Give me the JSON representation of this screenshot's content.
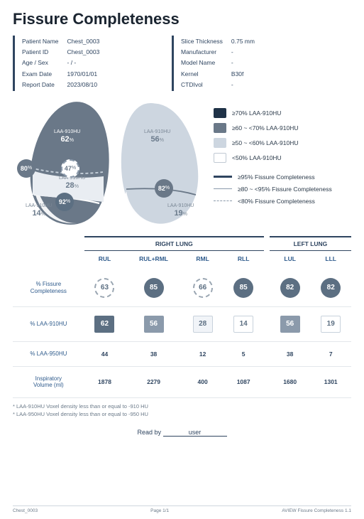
{
  "title": "Fissure Completeness",
  "patient_block": {
    "rows": [
      [
        "Patient Name",
        "Chest_0003"
      ],
      [
        "Patient ID",
        "Chest_0003"
      ],
      [
        "Age / Sex",
        "- / -"
      ],
      [
        "Exam Date",
        "1970/01/01"
      ],
      [
        "Report Date",
        "2023/08/10"
      ]
    ]
  },
  "scan_block": {
    "rows": [
      [
        "Slice Thickness",
        "0.75 mm"
      ],
      [
        "Manufacturer",
        "-"
      ],
      [
        "Model Name",
        "-"
      ],
      [
        "Kernel",
        "B30f"
      ],
      [
        "CTDIvol",
        "-"
      ]
    ]
  },
  "lung_diagram": {
    "right_lung_fill": "#6a7888",
    "right_lung_stroke": "#6a7888",
    "left_lung_fill": "#cdd6e0",
    "left_lung_stroke": "#cdd6e0",
    "lobe_line_color": "#9aa6b2",
    "labels": {
      "r_main": {
        "line1": "LAA-910HU",
        "pct": "62",
        "suffix": "%"
      },
      "r_mid": {
        "line1": "LAA-910HU",
        "pct": "28",
        "suffix": "%"
      },
      "r_low": {
        "line1": "LAA-910HU",
        "pct": "14",
        "suffix": "%"
      },
      "l_up": {
        "line1": "LAA-910HU",
        "pct": "56",
        "suffix": "%"
      },
      "l_low": {
        "line1": "LAA-910HU",
        "pct": "19",
        "suffix": "%"
      }
    },
    "badges": {
      "b1": {
        "val": "80",
        "suffix": "%",
        "style": "solid"
      },
      "b2": {
        "val": "47",
        "suffix": "%",
        "style": "dashed"
      },
      "b3": {
        "val": "92",
        "suffix": "%",
        "style": "solid"
      },
      "b4": {
        "val": "82",
        "suffix": "%",
        "style": "solid"
      }
    }
  },
  "legend": {
    "colors": [
      {
        "hex": "#1f3247",
        "text": "≥70% LAA-910HU"
      },
      {
        "hex": "#6a7888",
        "text": "≥60 ~ <70% LAA-910HU"
      },
      {
        "hex": "#cdd6e0",
        "text": "≥50 ~ <60% LAA-910HU"
      },
      {
        "hex": "#ffffff",
        "text": "<50% LAA-910HU",
        "border": "#c0c9d3"
      }
    ],
    "lines": [
      {
        "style": "solid",
        "width": 3,
        "color": "#2f4560",
        "text": "≥95% Fissure Completeness"
      },
      {
        "style": "solid",
        "width": 1.5,
        "color": "#8b9aab",
        "text": "≥80 ~ <95% Fissure Completeness"
      },
      {
        "style": "dashed",
        "width": 1.5,
        "color": "#8b9aab",
        "text": "<80% Fissure Completeness"
      }
    ]
  },
  "table": {
    "group_left": "RIGHT LUNG",
    "group_right": "LEFT LUNG",
    "cols_right": [
      "RUL",
      "RUL+RML",
      "RML",
      "RLL"
    ],
    "cols_left": [
      "LUL",
      "LLL"
    ],
    "rows": [
      {
        "label": "% Fissure\nCompleteness",
        "type": "pill",
        "r": [
          {
            "v": "63",
            "style": "dashed"
          },
          {
            "v": "85",
            "style": "solid"
          },
          {
            "v": "66",
            "style": "dashed"
          },
          {
            "v": "85",
            "style": "solid"
          }
        ],
        "l": [
          {
            "v": "82",
            "style": "solid"
          },
          {
            "v": "82",
            "style": "solid"
          }
        ]
      },
      {
        "label": "% LAA-910HU",
        "type": "sq",
        "r": [
          {
            "v": "62",
            "cls": "sq1"
          },
          {
            "v": "56",
            "cls": "sq2"
          },
          {
            "v": "28",
            "cls": "sq3"
          },
          {
            "v": "14",
            "cls": "sq4"
          }
        ],
        "l": [
          {
            "v": "56",
            "cls": "sq2"
          },
          {
            "v": "19",
            "cls": "sq4"
          }
        ]
      },
      {
        "label": "% LAA-950HU",
        "type": "plain",
        "r": [
          {
            "v": "44"
          },
          {
            "v": "38"
          },
          {
            "v": "12"
          },
          {
            "v": "5"
          }
        ],
        "l": [
          {
            "v": "38"
          },
          {
            "v": "7"
          }
        ]
      },
      {
        "label": "Inspiratory\nVolume (ml)",
        "type": "plain",
        "r": [
          {
            "v": "1878"
          },
          {
            "v": "2279"
          },
          {
            "v": "400"
          },
          {
            "v": "1087"
          }
        ],
        "l": [
          {
            "v": "1680"
          },
          {
            "v": "1301"
          }
        ]
      }
    ]
  },
  "footnotes": [
    "* LAA-910HU  Voxel density less than or equal to -910 HU",
    "* LAA-950HU  Voxel density less than or equal to -950 HU"
  ],
  "sign": {
    "label": "Read by",
    "value": "user"
  },
  "footer": {
    "left": "Chest_0003",
    "center": "Page 1/1",
    "right": "AVIEW Fissure Completeness 1.1"
  }
}
